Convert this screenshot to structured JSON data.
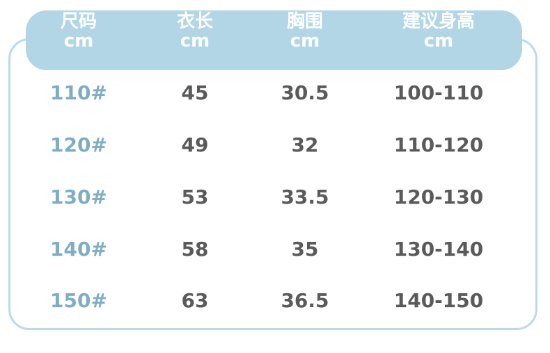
{
  "headers": [
    {
      "name": "尺码",
      "unit": "cm"
    },
    {
      "name": "衣长",
      "unit": "cm"
    },
    {
      "name": "胸围",
      "unit": "cm"
    },
    {
      "name": "建议身高",
      "unit": "cm"
    }
  ],
  "rows": [
    [
      "110#",
      "45",
      "30.5",
      "100-110"
    ],
    [
      "120#",
      "49",
      "32",
      "110-120"
    ],
    [
      "130#",
      "53",
      "33.5",
      "120-130"
    ],
    [
      "140#",
      "58",
      "35",
      "130-140"
    ],
    [
      "150#",
      "63",
      "36.5",
      "140-150"
    ]
  ],
  "colors": {
    "header_bg": "#b3d6e6",
    "size_text": "#7eadc4",
    "value_text": "#5a5a5a",
    "border": "#b9dae8"
  }
}
